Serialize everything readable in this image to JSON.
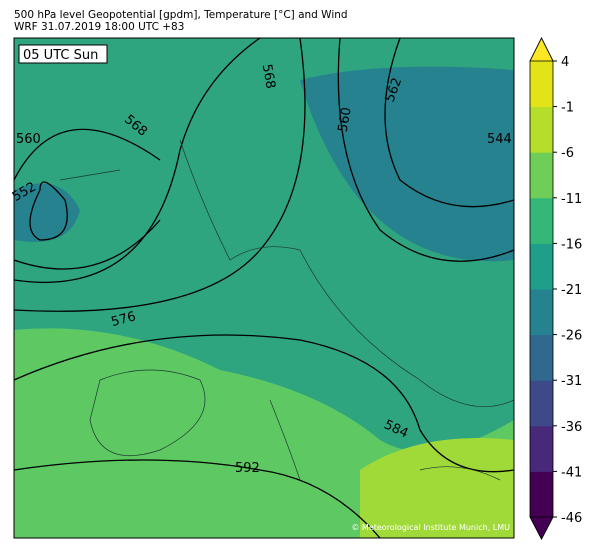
{
  "header": {
    "title": "500 hPa level Geopotential [gpdm], Temperature [°C] and Wind",
    "subtitle": "WRF 31.07.2019 18:00 UTC +83"
  },
  "map": {
    "time_label": "05 UTC Sun",
    "credit": "© Meteorological Institute Munich, LMU",
    "contour_labels": [
      "560",
      "552",
      "568",
      "568",
      "560",
      "562",
      "544",
      "576",
      "584",
      "592"
    ]
  },
  "colorbar": {
    "lim": [
      -46,
      4
    ],
    "ticks": [
      4,
      -1,
      -6,
      -11,
      -16,
      -21,
      -26,
      -31,
      -36,
      -41,
      -46
    ],
    "colors": [
      "#440154",
      "#482878",
      "#3e4989",
      "#31688e",
      "#26828e",
      "#1f9e89",
      "#35b779",
      "#6ece58",
      "#b5de2b",
      "#e3e418"
    ],
    "under_color": "#440154",
    "over_color": "#fde725"
  }
}
